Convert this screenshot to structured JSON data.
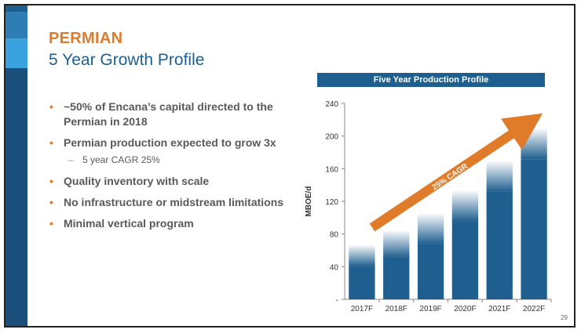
{
  "slide": {
    "title": "PERMIAN",
    "subtitle": "5 Year Growth Profile",
    "page_number": "29",
    "colors": {
      "accent": "#e07b2a",
      "primary": "#1f5f8f",
      "text": "#595959"
    }
  },
  "bullets": [
    {
      "text": "~50% of Encana’s capital directed to the Permian in 2018"
    },
    {
      "text": "Permian production expected to grow 3x",
      "sub": "5 year CAGR 25%"
    },
    {
      "text": "Quality inventory with scale"
    },
    {
      "text": "No infrastructure or midstream limitations"
    },
    {
      "text": "Minimal vertical program"
    }
  ],
  "chart_data": {
    "type": "bar",
    "title": "Five Year Production Profile",
    "categories": [
      "2017F",
      "2018F",
      "2019F",
      "2020F",
      "2021F",
      "2022F"
    ],
    "values": [
      67,
      85,
      106,
      134,
      170,
      210
    ],
    "ylabel": "MBOE/d",
    "xlabel": "",
    "ylim": [
      0,
      240
    ],
    "yticks": [
      "-",
      "40",
      "80",
      "120",
      "160",
      "200",
      "240"
    ],
    "ytick_values": [
      0,
      40,
      80,
      120,
      160,
      200,
      240
    ],
    "grid": false,
    "annotation": "25% CAGR",
    "bar_color": "#1f5f8f",
    "arrow_color": "#e07b2a"
  }
}
